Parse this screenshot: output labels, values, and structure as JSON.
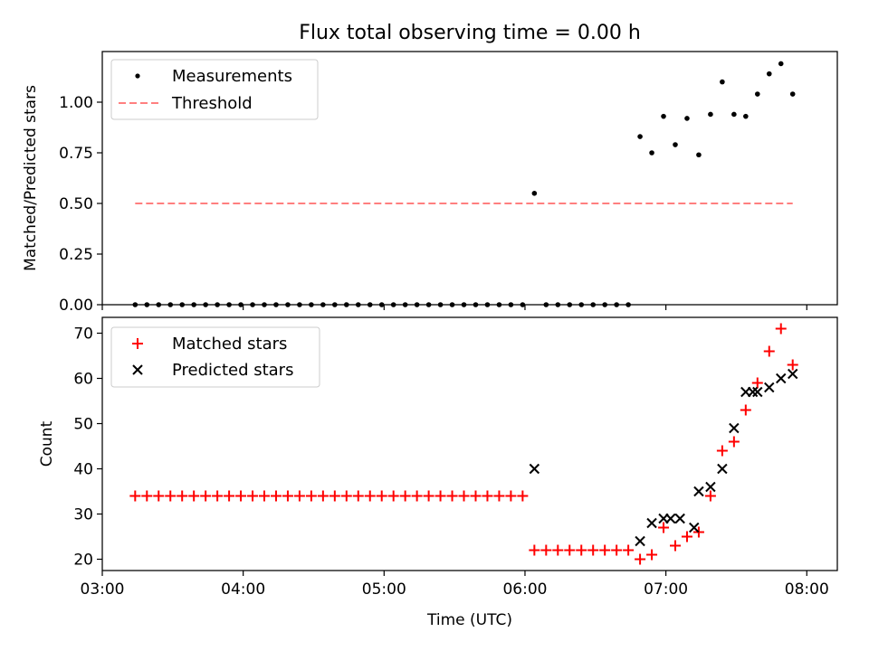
{
  "chart_data": [
    {
      "type": "scatter",
      "title": "Flux total observing time = 0.00 h",
      "xlabel": "",
      "ylabel": "Matched/Predicted stars",
      "xlim": [
        "03:00",
        "08:13"
      ],
      "ylim": [
        0,
        1.25
      ],
      "yticks": [
        "0.00",
        "0.25",
        "0.50",
        "0.75",
        "1.00"
      ],
      "legend_position": "top-left",
      "series": [
        {
          "name": "Measurements",
          "marker": "dot",
          "color": "#000000",
          "points": [
            [
              "03:14",
              0.0
            ],
            [
              "03:19",
              0.0
            ],
            [
              "03:24",
              0.0
            ],
            [
              "03:29",
              0.0
            ],
            [
              "03:34",
              0.0
            ],
            [
              "03:39",
              0.0
            ],
            [
              "03:44",
              0.0
            ],
            [
              "03:49",
              0.0
            ],
            [
              "03:54",
              0.0
            ],
            [
              "03:59",
              0.0
            ],
            [
              "04:04",
              0.0
            ],
            [
              "04:09",
              0.0
            ],
            [
              "04:14",
              0.0
            ],
            [
              "04:19",
              0.0
            ],
            [
              "04:24",
              0.0
            ],
            [
              "04:29",
              0.0
            ],
            [
              "04:34",
              0.0
            ],
            [
              "04:39",
              0.0
            ],
            [
              "04:44",
              0.0
            ],
            [
              "04:49",
              0.0
            ],
            [
              "04:54",
              0.0
            ],
            [
              "04:59",
              0.0
            ],
            [
              "05:04",
              0.0
            ],
            [
              "05:09",
              0.0
            ],
            [
              "05:14",
              0.0
            ],
            [
              "05:19",
              0.0
            ],
            [
              "05:24",
              0.0
            ],
            [
              "05:29",
              0.0
            ],
            [
              "05:34",
              0.0
            ],
            [
              "05:39",
              0.0
            ],
            [
              "05:44",
              0.0
            ],
            [
              "05:49",
              0.0
            ],
            [
              "05:54",
              0.0
            ],
            [
              "05:59",
              0.0
            ],
            [
              "06:04",
              0.55
            ],
            [
              "06:09",
              0.0
            ],
            [
              "06:14",
              0.0
            ],
            [
              "06:19",
              0.0
            ],
            [
              "06:24",
              0.0
            ],
            [
              "06:29",
              0.0
            ],
            [
              "06:34",
              0.0
            ],
            [
              "06:39",
              0.0
            ],
            [
              "06:44",
              0.0
            ],
            [
              "06:49",
              0.83
            ],
            [
              "06:54",
              0.75
            ],
            [
              "06:59",
              0.93
            ],
            [
              "07:04",
              0.79
            ],
            [
              "07:09",
              0.92
            ],
            [
              "07:14",
              0.74
            ],
            [
              "07:19",
              0.94
            ],
            [
              "07:24",
              1.1
            ],
            [
              "07:29",
              0.94
            ],
            [
              "07:34",
              0.93
            ],
            [
              "07:39",
              1.04
            ],
            [
              "07:44",
              1.14
            ],
            [
              "07:49",
              1.19
            ],
            [
              "07:54",
              1.04
            ]
          ]
        },
        {
          "name": "Threshold",
          "marker": "dashed-line",
          "color": "#ff7f7f",
          "points": [
            [
              "03:14",
              0.5
            ],
            [
              "07:54",
              0.5
            ]
          ]
        }
      ]
    },
    {
      "type": "scatter",
      "title": "",
      "xlabel": "Time (UTC)",
      "ylabel": "Count",
      "xlim": [
        "03:00",
        "08:13"
      ],
      "ylim": [
        17.5,
        73.5
      ],
      "xticks": [
        "03:00",
        "04:00",
        "05:00",
        "06:00",
        "07:00",
        "08:00"
      ],
      "yticks": [
        "20",
        "30",
        "40",
        "50",
        "60",
        "70"
      ],
      "legend_position": "top-left",
      "series": [
        {
          "name": "Matched stars",
          "marker": "plus",
          "color": "#ff0000",
          "points": [
            [
              "03:14",
              34
            ],
            [
              "03:19",
              34
            ],
            [
              "03:24",
              34
            ],
            [
              "03:29",
              34
            ],
            [
              "03:34",
              34
            ],
            [
              "03:39",
              34
            ],
            [
              "03:44",
              34
            ],
            [
              "03:49",
              34
            ],
            [
              "03:54",
              34
            ],
            [
              "03:59",
              34
            ],
            [
              "04:04",
              34
            ],
            [
              "04:09",
              34
            ],
            [
              "04:14",
              34
            ],
            [
              "04:19",
              34
            ],
            [
              "04:24",
              34
            ],
            [
              "04:29",
              34
            ],
            [
              "04:34",
              34
            ],
            [
              "04:39",
              34
            ],
            [
              "04:44",
              34
            ],
            [
              "04:49",
              34
            ],
            [
              "04:54",
              34
            ],
            [
              "04:59",
              34
            ],
            [
              "05:04",
              34
            ],
            [
              "05:09",
              34
            ],
            [
              "05:14",
              34
            ],
            [
              "05:19",
              34
            ],
            [
              "05:24",
              34
            ],
            [
              "05:29",
              34
            ],
            [
              "05:34",
              34
            ],
            [
              "05:39",
              34
            ],
            [
              "05:44",
              34
            ],
            [
              "05:49",
              34
            ],
            [
              "05:54",
              34
            ],
            [
              "05:59",
              34
            ],
            [
              "06:04",
              22
            ],
            [
              "06:09",
              22
            ],
            [
              "06:14",
              22
            ],
            [
              "06:19",
              22
            ],
            [
              "06:24",
              22
            ],
            [
              "06:29",
              22
            ],
            [
              "06:34",
              22
            ],
            [
              "06:39",
              22
            ],
            [
              "06:44",
              22
            ],
            [
              "06:49",
              20
            ],
            [
              "06:54",
              21
            ],
            [
              "06:59",
              27
            ],
            [
              "07:04",
              23
            ],
            [
              "07:09",
              25
            ],
            [
              "07:14",
              26
            ],
            [
              "07:19",
              34
            ],
            [
              "07:24",
              44
            ],
            [
              "07:29",
              46
            ],
            [
              "07:34",
              53
            ],
            [
              "07:39",
              59
            ],
            [
              "07:44",
              66
            ],
            [
              "07:49",
              71
            ],
            [
              "07:54",
              63
            ]
          ]
        },
        {
          "name": "Predicted stars",
          "marker": "x",
          "color": "#000000",
          "points": [
            [
              "06:04",
              40
            ],
            [
              "06:49",
              24
            ],
            [
              "06:54",
              28
            ],
            [
              "06:59",
              29
            ],
            [
              "07:02",
              29
            ],
            [
              "07:06",
              29
            ],
            [
              "07:12",
              27
            ],
            [
              "07:14",
              35
            ],
            [
              "07:19",
              36
            ],
            [
              "07:24",
              40
            ],
            [
              "07:29",
              49
            ],
            [
              "07:34",
              57
            ],
            [
              "07:37",
              57
            ],
            [
              "07:39",
              57
            ],
            [
              "07:44",
              58
            ],
            [
              "07:49",
              60
            ],
            [
              "07:54",
              61
            ]
          ]
        }
      ]
    }
  ]
}
